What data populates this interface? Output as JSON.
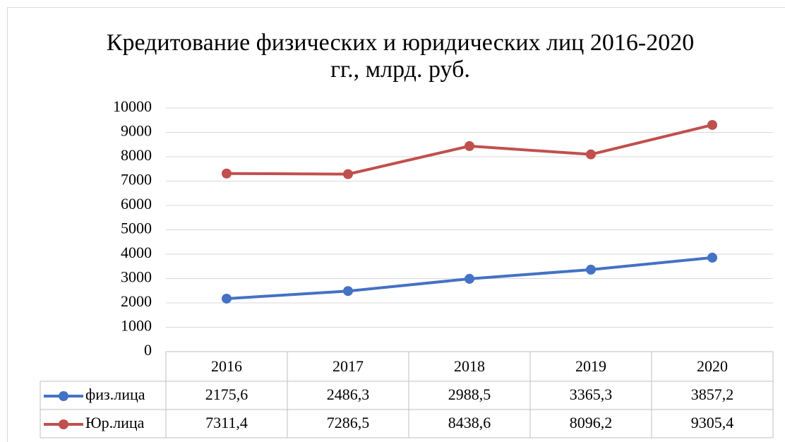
{
  "chart_data": {
    "type": "line",
    "title": "Кредитование физических и юридических лиц 2016-2020 гг., млрд. руб.",
    "categories": [
      "2016",
      "2017",
      "2018",
      "2019",
      "2020"
    ],
    "series": [
      {
        "name": "физ.лица",
        "color": "#4472c4",
        "values": [
          2175.6,
          2486.3,
          2988.5,
          3365.3,
          3857.2
        ],
        "value_labels": [
          "2175,6",
          "2486,3",
          "2988,5",
          "3365,3",
          "3857,2"
        ]
      },
      {
        "name": "Юр.лица",
        "color": "#c0504d",
        "values": [
          7311.4,
          7286.5,
          8438.6,
          8096.2,
          9305.4
        ],
        "value_labels": [
          "7311,4",
          "7286,5",
          "8438,6",
          "8096,2",
          "9305,4"
        ]
      }
    ],
    "ylim": [
      0,
      10000
    ],
    "yticks": [
      0,
      1000,
      2000,
      3000,
      4000,
      5000,
      6000,
      7000,
      8000,
      9000,
      10000
    ],
    "grid": true
  }
}
